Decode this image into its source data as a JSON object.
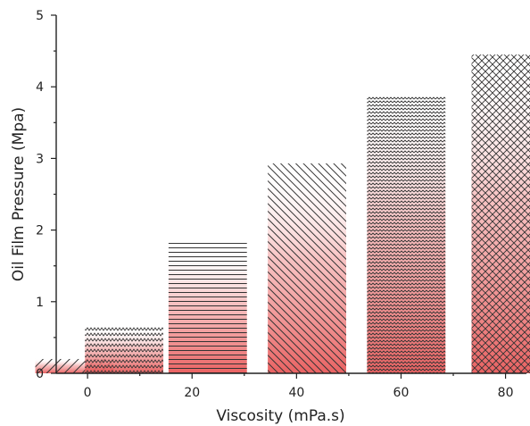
{
  "chart_data": {
    "type": "bar",
    "title": "",
    "xlabel": "Viscosity (mPa.s)",
    "ylabel": "Oil Film Pressure (Mpa)",
    "xlim": [
      -6,
      84
    ],
    "ylim": [
      0,
      5
    ],
    "x_ticks": [
      "0",
      "20",
      "40",
      "60",
      "80"
    ],
    "y_ticks": [
      "0",
      "1",
      "2",
      "3",
      "4",
      "5"
    ],
    "grid": false,
    "legend": "none",
    "bar_width": 15,
    "bars": [
      {
        "x": -2.5,
        "value": 0.2,
        "pattern": "diagonal-up"
      },
      {
        "x": 7,
        "value": 0.65,
        "pattern": "zigzag-small"
      },
      {
        "x": 23,
        "value": 1.82,
        "pattern": "horizontal"
      },
      {
        "x": 42,
        "value": 2.93,
        "pattern": "diagonal-down"
      },
      {
        "x": 61,
        "value": 3.87,
        "pattern": "zigzag"
      },
      {
        "x": 81,
        "value": 4.45,
        "pattern": "crosshatch"
      }
    ],
    "colors": {
      "pattern_stroke": "#333333",
      "fill_bottom": "#e85a5a",
      "fill_top": "#ffffff"
    }
  }
}
